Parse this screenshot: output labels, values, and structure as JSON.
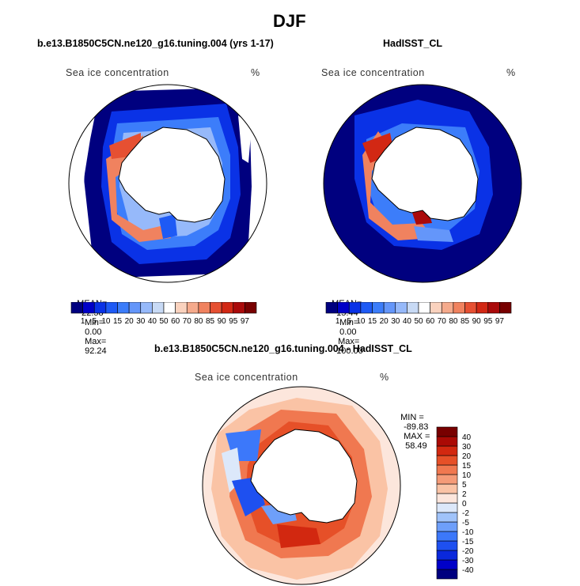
{
  "figure": {
    "title": "DJF"
  },
  "panels": [
    {
      "title": "b.e13.B1850C5CN.ne120_g16.tuning.004 (yrs 1-17)",
      "variable": "Sea ice concentration",
      "units": "%",
      "stats": {
        "mean_label": "MEAN=",
        "mean": "22.58",
        "min_label": "Min=",
        "min": "0.00",
        "max_label": "Max=",
        "max": "92.24"
      }
    },
    {
      "title": "HadISST_CL",
      "variable": "Sea ice concentration",
      "units": "%",
      "stats": {
        "mean_label": "MEAN=",
        "mean": "15.44",
        "min_label": "Min=",
        "min": "0.00",
        "max_label": "Max=",
        "max": "100.00"
      }
    },
    {
      "title": "b.e13.B1850C5CN.ne120_g16.tuning.004 - HadISST_CL",
      "variable": "Sea ice concentration",
      "units": "%",
      "stats": {
        "min_label": "MIN =",
        "min": "-89.83",
        "max_label": "MAX =",
        "max": "58.49"
      }
    }
  ],
  "chart_data": [
    {
      "type": "heatmap",
      "projection": "south-polar-stereographic",
      "title": "b.e13.B1850C5CN.ne120_g16.tuning.004 (yrs 1-17)",
      "variable": "Sea ice concentration",
      "units": "%",
      "mean": 22.58,
      "min": 0.0,
      "max": 92.24,
      "colorbar": {
        "orientation": "horizontal",
        "levels": [
          1,
          5,
          10,
          15,
          20,
          30,
          40,
          50,
          60,
          70,
          80,
          85,
          90,
          95,
          97
        ],
        "colors": [
          "#00007f",
          "#0000c8",
          "#0a32e6",
          "#1e5af5",
          "#3c7dfa",
          "#6496fa",
          "#96b9fa",
          "#c8daf5",
          "#ffffff",
          "#fad2be",
          "#f5aa8c",
          "#f0825f",
          "#e65032",
          "#d22814",
          "#aa0a0a",
          "#780000"
        ]
      }
    },
    {
      "type": "heatmap",
      "projection": "south-polar-stereographic",
      "title": "HadISST_CL",
      "variable": "Sea ice concentration",
      "units": "%",
      "mean": 15.44,
      "min": 0.0,
      "max": 100.0,
      "colorbar": {
        "orientation": "horizontal",
        "levels": [
          1,
          5,
          10,
          15,
          20,
          30,
          40,
          50,
          60,
          70,
          80,
          85,
          90,
          95,
          97
        ],
        "colors": [
          "#00007f",
          "#0000c8",
          "#0a32e6",
          "#1e5af5",
          "#3c7dfa",
          "#6496fa",
          "#96b9fa",
          "#c8daf5",
          "#ffffff",
          "#fad2be",
          "#f5aa8c",
          "#f0825f",
          "#e65032",
          "#d22814",
          "#aa0a0a",
          "#780000"
        ]
      }
    },
    {
      "type": "heatmap",
      "projection": "south-polar-stereographic",
      "title": "b.e13.B1850C5CN.ne120_g16.tuning.004 - HadISST_CL",
      "variable": "Sea ice concentration",
      "units": "%",
      "min": -89.83,
      "max": 58.49,
      "colorbar": {
        "orientation": "vertical",
        "levels": [
          -40,
          -30,
          -20,
          -15,
          -10,
          -5,
          -2,
          0,
          2,
          5,
          10,
          15,
          20,
          30,
          40
        ],
        "colors": [
          "#00007f",
          "#0000c8",
          "#0a28dc",
          "#1e50f0",
          "#3c78fa",
          "#6e9ffa",
          "#a0c3fa",
          "#dce8fa",
          "#fce6dc",
          "#fac3a5",
          "#f59b78",
          "#f07850",
          "#e65028",
          "#d22810",
          "#aa0a05",
          "#780000"
        ]
      }
    }
  ]
}
